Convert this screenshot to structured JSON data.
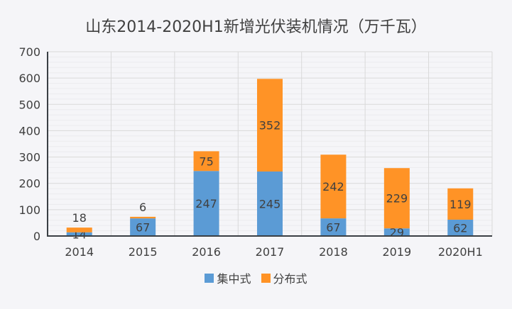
{
  "chart_data": {
    "type": "bar",
    "stacked": true,
    "title": "山东2014-2020H1新增光伏装机情况（万千瓦）",
    "categories": [
      "2014",
      "2015",
      "2016",
      "2017",
      "2018",
      "2019",
      "2020H1"
    ],
    "series": [
      {
        "name": "集中式",
        "color": "#5b9bd5",
        "values": [
          14,
          67,
          247,
          245,
          67,
          29,
          62
        ]
      },
      {
        "name": "分布式",
        "color": "#ff9326",
        "values": [
          18,
          6,
          75,
          352,
          242,
          229,
          119
        ]
      }
    ],
    "xlabel": "",
    "ylabel": "",
    "ylim": [
      0,
      700
    ],
    "yticks": [
      0,
      100,
      200,
      300,
      400,
      500,
      600,
      700
    ],
    "grid": true,
    "legend": "bottom"
  }
}
